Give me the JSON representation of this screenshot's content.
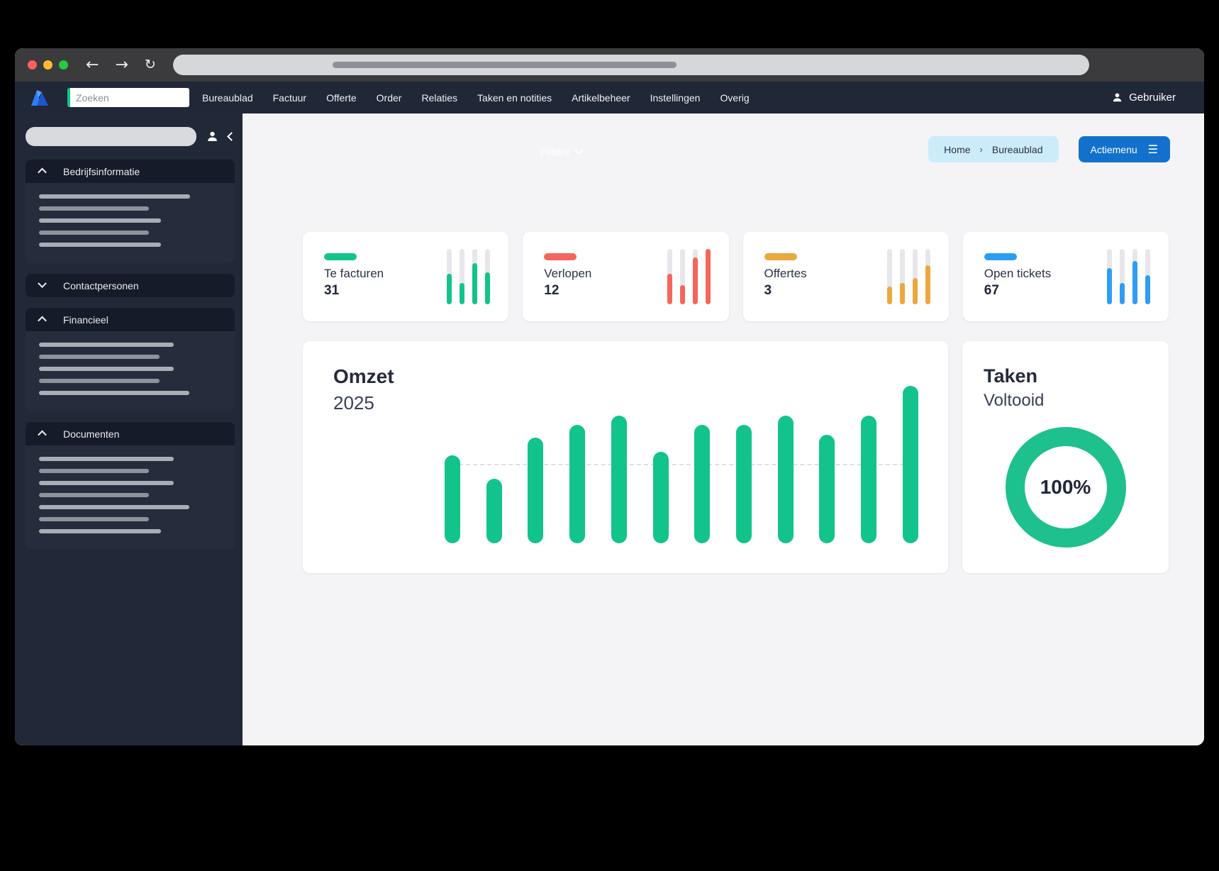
{
  "window": {
    "url_skeleton": true,
    "traffic_lights": [
      "#ff5f57",
      "#febc2e",
      "#28c840"
    ]
  },
  "topnav": {
    "search_placeholder": "Zoeken",
    "items": [
      "Bureaublad",
      "Factuur",
      "Offerte",
      "Order",
      "Relaties",
      "Taken en notities",
      "Artikelbeheer",
      "Instellingen",
      "Overig"
    ],
    "user_label": "Gebruiker"
  },
  "sidebar": {
    "sections": [
      {
        "label": "Bedrijfsinformatie",
        "expanded": true,
        "lines": [
          213,
          155,
          172,
          155,
          172
        ]
      },
      {
        "label": "Contactpersonen",
        "expanded": false,
        "lines": []
      },
      {
        "label": "Financieel",
        "expanded": true,
        "lines": [
          190,
          170,
          190,
          170,
          212
        ]
      },
      {
        "label": "Documenten",
        "expanded": true,
        "lines": [
          190,
          155,
          190,
          155,
          212,
          155,
          172
        ]
      }
    ]
  },
  "main": {
    "filters_label": "Filters",
    "breadcrumb": {
      "items": [
        "Home",
        "Bureaublad"
      ],
      "separator": "›"
    },
    "action_button": "Actiemenu",
    "stat_cards": [
      {
        "label": "Te facturen",
        "value": "31",
        "color": "#12c48b",
        "bars": [
          55,
          38,
          75,
          58
        ]
      },
      {
        "label": "Verlopen",
        "value": "12",
        "color": "#f5655c",
        "bars": [
          55,
          35,
          85,
          100
        ]
      },
      {
        "label": "Offertes",
        "value": "3",
        "color": "#eba83d",
        "bars": [
          32,
          38,
          48,
          70
        ]
      },
      {
        "label": "Open tickets",
        "value": "67",
        "color": "#2e9df3",
        "bars": [
          65,
          38,
          78,
          52
        ]
      }
    ],
    "chart_card": {
      "title": "Omzet",
      "subtitle": "2025"
    },
    "donut_card": {
      "title": "Taken",
      "subtitle": "Voltooid",
      "percent_label": "100%"
    }
  },
  "chart_data": [
    {
      "type": "bar",
      "title": "Omzet",
      "subtitle": "2025",
      "categories": [
        "",
        "",
        "",
        "",
        "",
        "",
        "",
        "",
        "",
        "",
        "",
        ""
      ],
      "values_percent": [
        56,
        41,
        67,
        75,
        81,
        58,
        75,
        75,
        81,
        69,
        81,
        100
      ],
      "bar_color": "#12c48b",
      "gridline_percent": 50,
      "x_labels_visible": false,
      "y_labels_visible": false
    },
    {
      "type": "pie",
      "title": "Taken Voltooid",
      "values": [
        100
      ],
      "labels": [
        "Voltooid"
      ],
      "center_label": "100%",
      "ring_color": "#1ec08d"
    }
  ],
  "colors": {
    "accent_green": "#12c48b",
    "accent_red": "#f5655c",
    "accent_orange": "#eba83d",
    "accent_blue": "#2e9df3",
    "action_blue": "#1371cd",
    "breadcrumb_bg": "#cdecfa",
    "nav_bg": "#202737",
    "sidebar_bg": "#212837",
    "main_bg": "#f4f4f6"
  }
}
